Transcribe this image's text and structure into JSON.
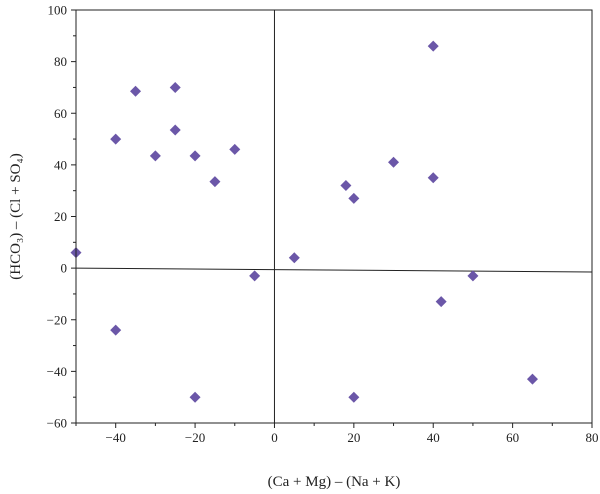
{
  "chart_data": {
    "type": "scatter",
    "title": "",
    "xlabel": "(Ca + Mg) – (Na + K)",
    "ylabel": "(HCO₃) – (Cl + SO₄)",
    "xlim": [
      -50,
      80
    ],
    "ylim": [
      -60,
      100
    ],
    "xticks": [
      -40,
      -20,
      0,
      20,
      40,
      60,
      80
    ],
    "yticks": [
      -60,
      -40,
      -20,
      0,
      20,
      40,
      60,
      80,
      100
    ],
    "xtick_labels": [
      "−40",
      "−20",
      "0",
      "20",
      "40",
      "60",
      "80"
    ],
    "ytick_labels": [
      "−60",
      "−40",
      "−20",
      "0",
      "20",
      "40",
      "60",
      "80",
      "100"
    ],
    "grid": false,
    "marker": "diamond",
    "marker_color": "#6B57A8",
    "series": [
      {
        "x": [
          -50,
          -40,
          -40,
          -35,
          -30,
          -25,
          -25,
          -20,
          -20,
          -15,
          -10,
          -5,
          5,
          18,
          20,
          20,
          30,
          40,
          40,
          42,
          50,
          65
        ],
        "y": [
          6,
          -24,
          50,
          68.5,
          43.5,
          70,
          53.5,
          43.5,
          -50,
          33.5,
          46,
          -3,
          4,
          32,
          27,
          -50,
          41,
          86,
          35,
          -13,
          -3,
          -43
        ]
      }
    ],
    "reference_lines": {
      "horizontal": {
        "x_start": -50,
        "y_start": 0,
        "x_end": 80,
        "y_end": -1.5
      },
      "vertical": {
        "x": 0
      }
    }
  }
}
